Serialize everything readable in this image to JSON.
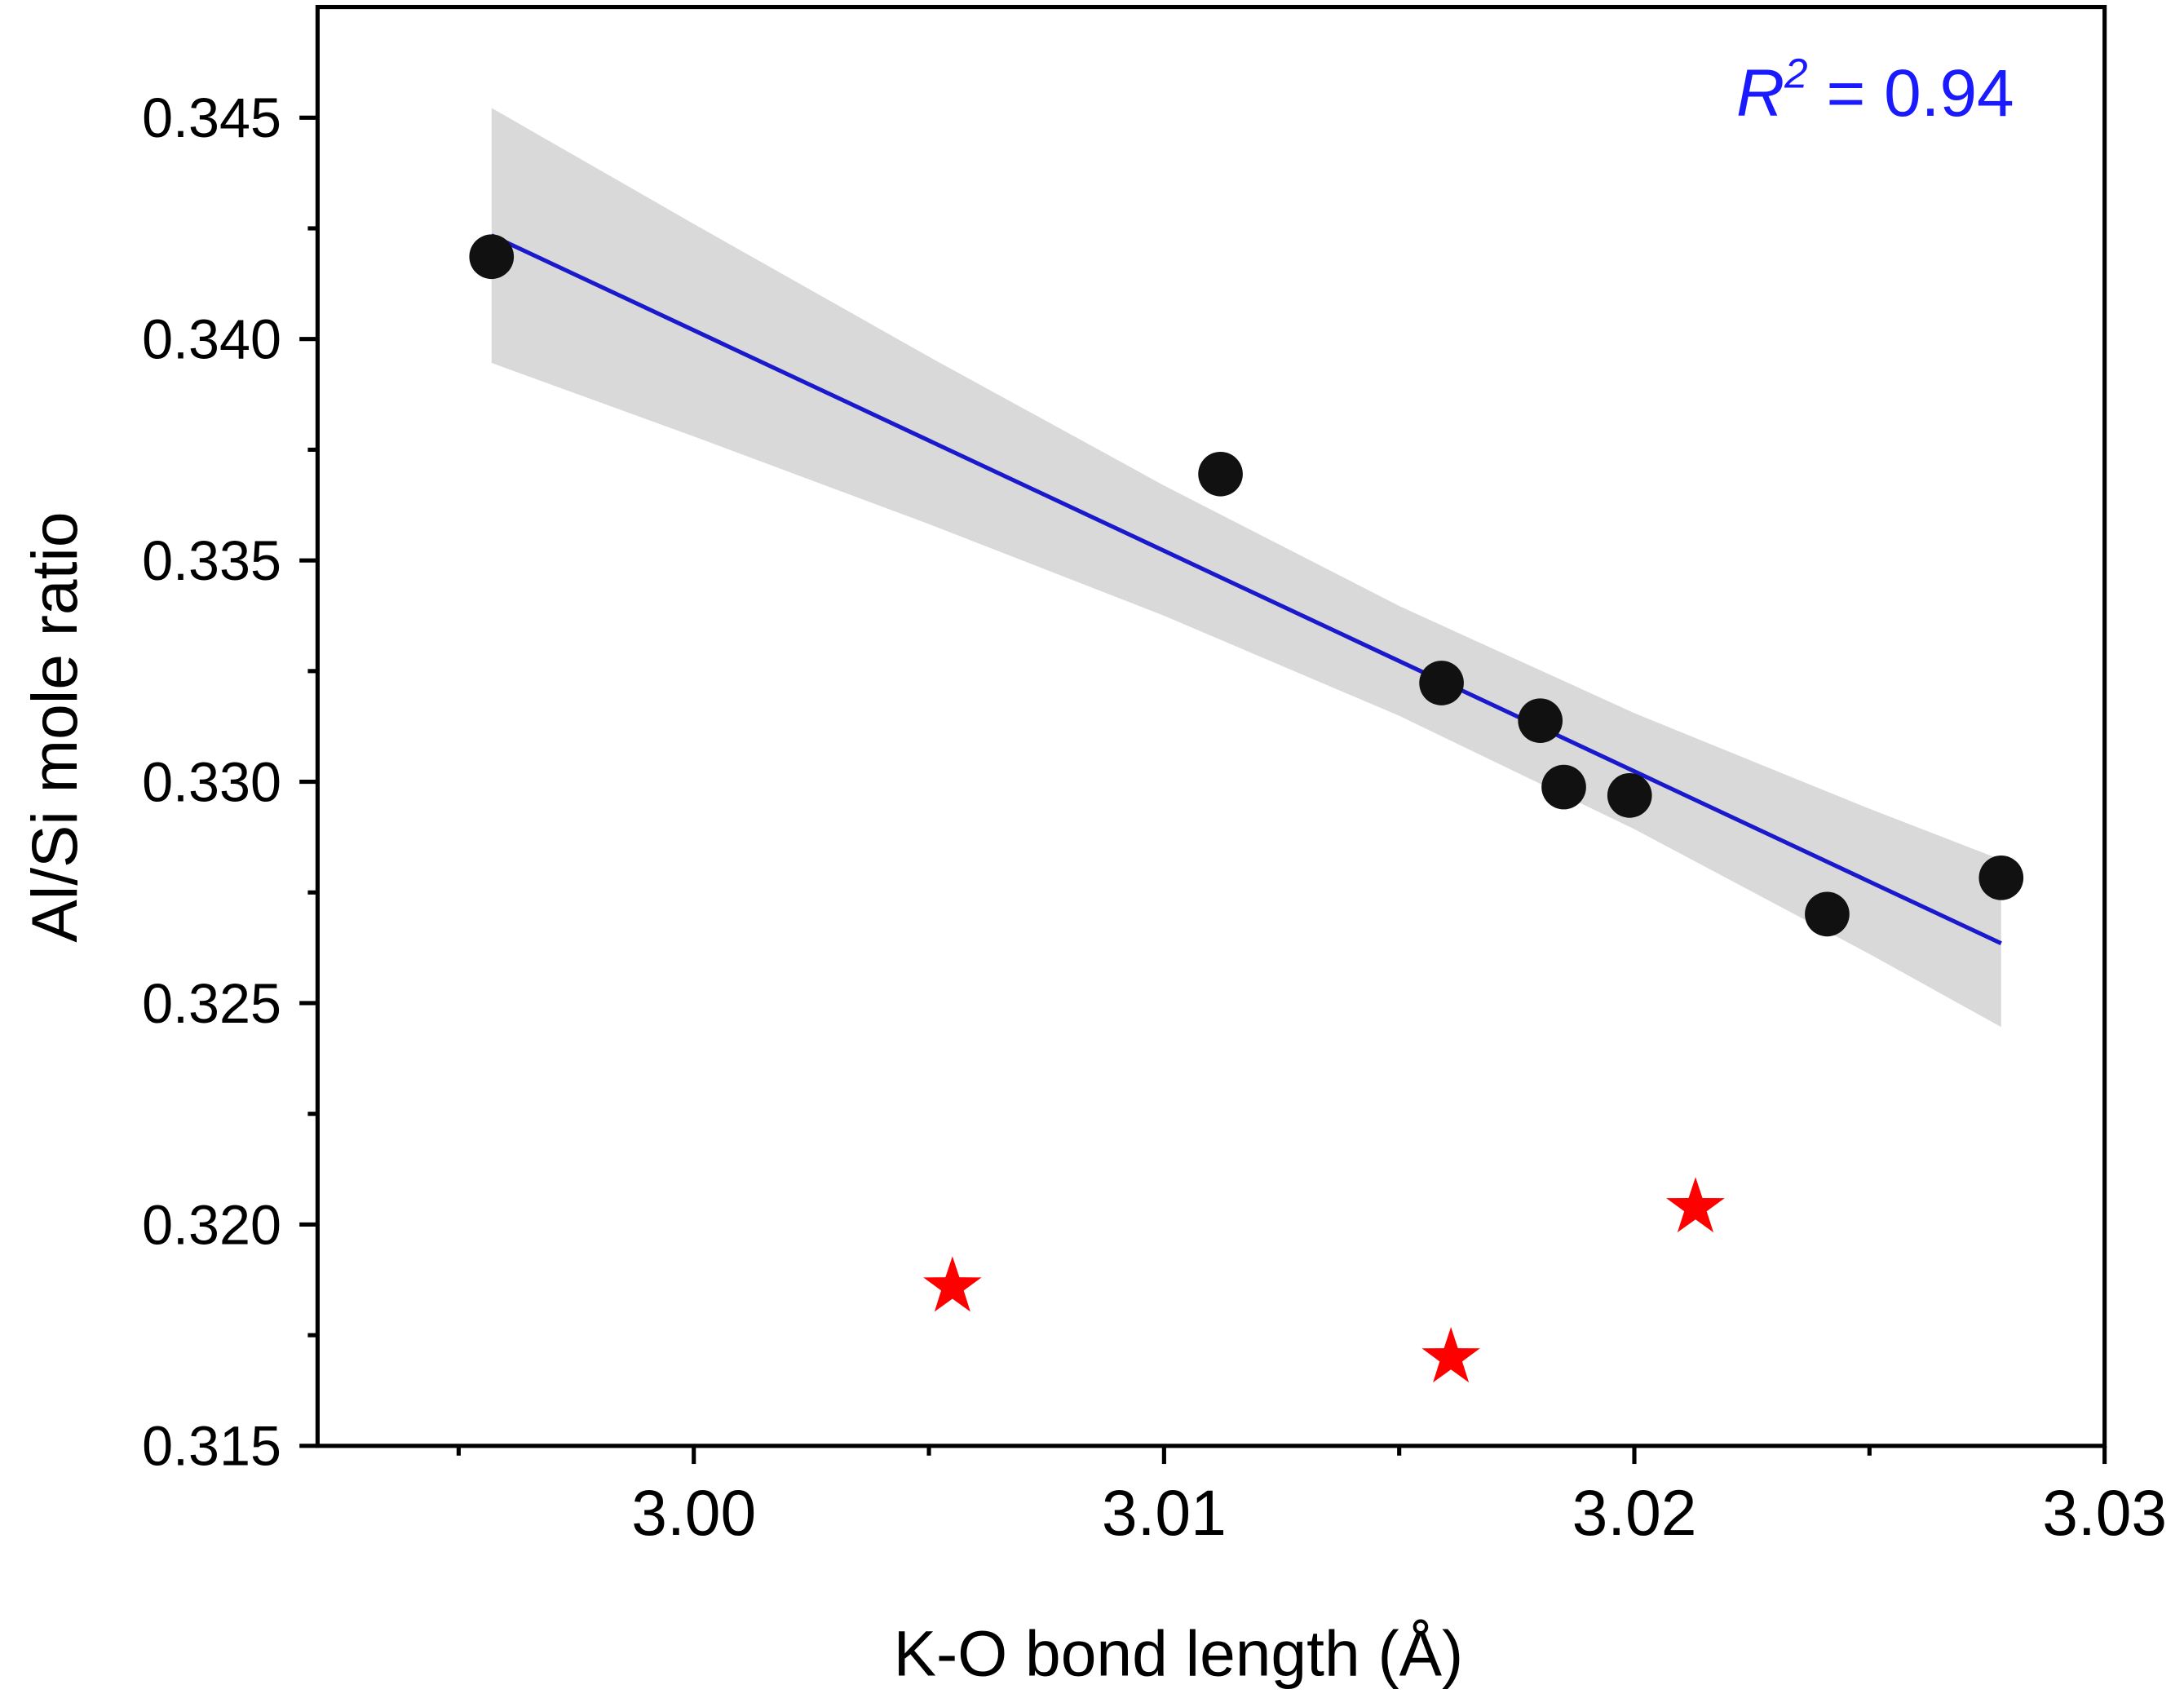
{
  "chart_data": {
    "type": "scatter",
    "title": "",
    "xlabel": "K-O bond length (Å)",
    "ylabel": "Al/Si mole ratio",
    "xlim": [
      2.992,
      3.03
    ],
    "ylim": [
      0.315,
      0.3475
    ],
    "x_ticks": [
      "3.00",
      "3.01",
      "3.02",
      "3.03"
    ],
    "x_tick_values": [
      3.0,
      3.01,
      3.02,
      3.03
    ],
    "y_ticks": [
      "0.315",
      "0.320",
      "0.325",
      "0.330",
      "0.335",
      "0.340",
      "0.345"
    ],
    "y_tick_values": [
      0.315,
      0.32,
      0.325,
      0.33,
      0.335,
      0.34,
      0.345
    ],
    "grid": false,
    "annotation": {
      "r_label": "R",
      "r_sup": "2",
      "r_value": " = 0.94",
      "color": "#1a1aff"
    },
    "series": [
      {
        "marker": "circle",
        "color": "#111111",
        "x": [
          2.9957,
          3.0112,
          3.0159,
          3.018,
          3.0185,
          3.0199,
          3.0241,
          3.0278
        ],
        "y": [
          0.34186,
          0.33695,
          0.33223,
          0.33138,
          0.32988,
          0.32969,
          0.32701,
          0.32783
        ]
      },
      {
        "marker": "star",
        "color": "#ff0000",
        "x": [
          3.0055,
          3.0161,
          3.0213
        ],
        "y": [
          0.31859,
          0.31699,
          0.32038
        ]
      }
    ],
    "fit": {
      "color": "#1a1acc",
      "x": [
        2.9957,
        3.0278
      ],
      "y": [
        0.34234,
        0.32635
      ]
    },
    "confidence_band": {
      "color": "#d9d9d9",
      "x": [
        2.9957,
        3.0,
        3.005,
        3.01,
        3.015,
        3.02,
        3.025,
        3.0278
      ],
      "upper": [
        0.34522,
        0.3426,
        0.3396,
        0.33669,
        0.33397,
        0.33155,
        0.32939,
        0.32824
      ],
      "lower": [
        0.33946,
        0.3378,
        0.33582,
        0.33375,
        0.33149,
        0.32893,
        0.32611,
        0.32446
      ]
    }
  }
}
